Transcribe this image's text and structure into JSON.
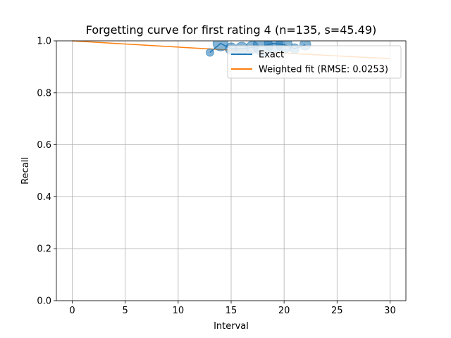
{
  "chart_data": {
    "type": "line",
    "title": "Forgetting curve for first rating 4 (n=135, s=45.49)",
    "xlabel": "Interval",
    "ylabel": "Recall",
    "xlim": [
      -1.5,
      31.5
    ],
    "ylim": [
      0.0,
      1.0
    ],
    "xticks": [
      0,
      5,
      10,
      15,
      20,
      25,
      30
    ],
    "yticks": [
      0.0,
      0.2,
      0.4,
      0.6,
      0.8,
      1.0
    ],
    "xtick_labels": [
      "0",
      "5",
      "10",
      "15",
      "20",
      "25",
      "30"
    ],
    "ytick_labels": [
      "0.0",
      "0.2",
      "0.4",
      "0.6",
      "0.8",
      "1.0"
    ],
    "grid": true,
    "legend_position": "top-right",
    "series": [
      {
        "name": "Exact",
        "color": "#1f77b4",
        "style": "line-with-sized-markers",
        "points": [
          {
            "x": 13,
            "y": 0.955,
            "weight": 1
          },
          {
            "x": 14,
            "y": 0.99,
            "weight": 14
          },
          {
            "x": 15,
            "y": 0.97,
            "weight": 6
          },
          {
            "x": 16,
            "y": 0.97,
            "weight": 9
          },
          {
            "x": 17,
            "y": 0.975,
            "weight": 8
          },
          {
            "x": 18,
            "y": 0.98,
            "weight": 30
          },
          {
            "x": 19,
            "y": 0.99,
            "weight": 25
          },
          {
            "x": 20,
            "y": 0.985,
            "weight": 18
          },
          {
            "x": 21,
            "y": 0.97,
            "weight": 3
          },
          {
            "x": 22,
            "y": 0.985,
            "weight": 5
          }
        ]
      },
      {
        "name": "Weighted fit (RMSE: 0.0253)",
        "color": "#ff7f0e",
        "style": "line",
        "points": [
          {
            "x": 0,
            "y": 1.0
          },
          {
            "x": 5,
            "y": 0.9877
          },
          {
            "x": 10,
            "y": 0.9758
          },
          {
            "x": 15,
            "y": 0.9642
          },
          {
            "x": 20,
            "y": 0.953
          },
          {
            "x": 25,
            "y": 0.9421
          },
          {
            "x": 30,
            "y": 0.9315
          }
        ]
      }
    ]
  }
}
